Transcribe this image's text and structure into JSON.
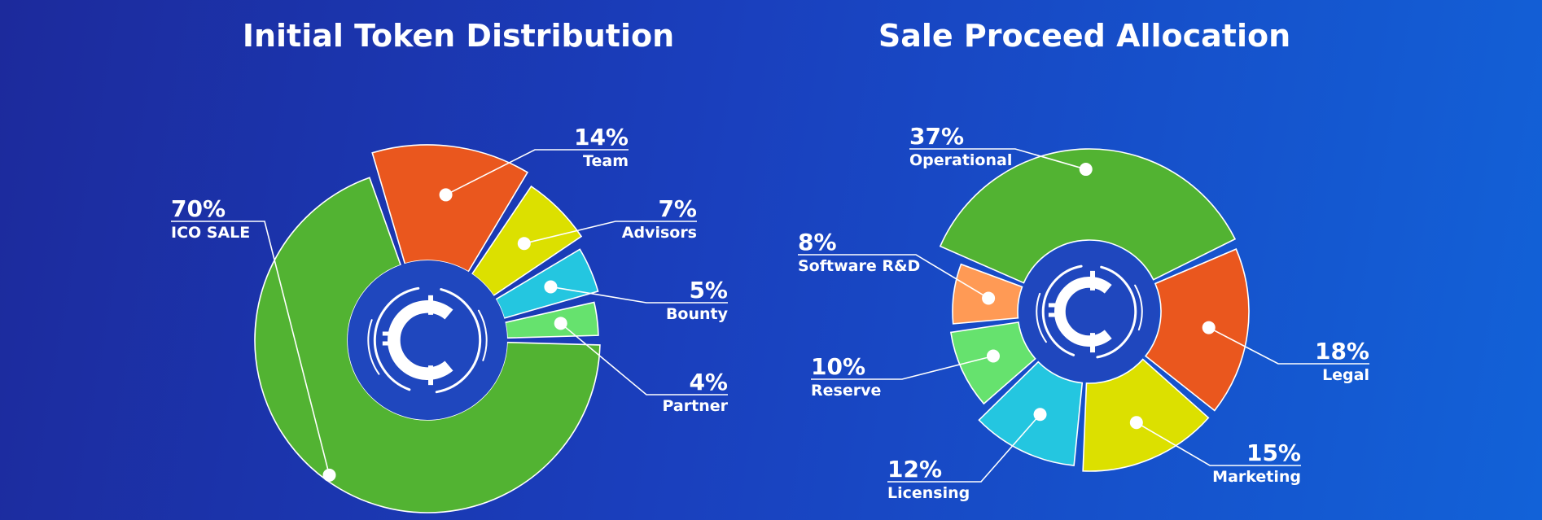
{
  "chart_data": [
    {
      "type": "pie",
      "title": "Initial Token Distribution",
      "slices": [
        {
          "label": "ICO SALE",
          "value": 70,
          "pct_text": "70%",
          "color": "#52b332"
        },
        {
          "label": "Team",
          "value": 14,
          "pct_text": "14%",
          "color": "#ea571e"
        },
        {
          "label": "Advisors",
          "value": 7,
          "pct_text": "7%",
          "color": "#dce000"
        },
        {
          "label": "Bounty",
          "value": 5,
          "pct_text": "5%",
          "color": "#24c6e0"
        },
        {
          "label": "Partner",
          "value": 4,
          "pct_text": "4%",
          "color": "#66e26e"
        }
      ]
    },
    {
      "type": "pie",
      "title": "Sale Proceed Allocation",
      "slices": [
        {
          "label": "Operational",
          "value": 37,
          "pct_text": "37%",
          "color": "#52b332"
        },
        {
          "label": "Legal",
          "value": 18,
          "pct_text": "18%",
          "color": "#ea571e"
        },
        {
          "label": "Marketing",
          "value": 15,
          "pct_text": "15%",
          "color": "#dce000"
        },
        {
          "label": "Licensing",
          "value": 12,
          "pct_text": "12%",
          "color": "#24c6e0"
        },
        {
          "label": "Reserve",
          "value": 10,
          "pct_text": "10%",
          "color": "#66e26e"
        },
        {
          "label": "Software R&D",
          "value": 8,
          "pct_text": "8%",
          "color": "#ff9a55"
        }
      ]
    }
  ],
  "center_icon": "coin-c-icon",
  "hub_color": "#1f47be"
}
